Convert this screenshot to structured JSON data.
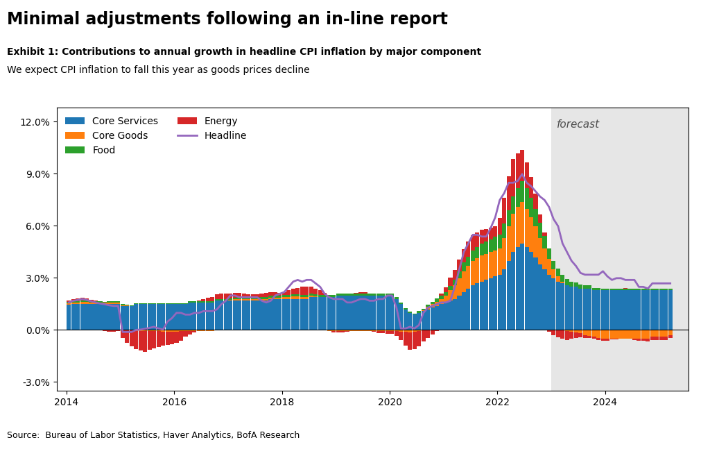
{
  "chart_data": {
    "type": "bar",
    "stacked": true,
    "title": "Minimal adjustments following an in-line report",
    "subtitle": [
      "Exhibit 1: Contributions to annual growth in headline CPI inflation by major component",
      "We expect CPI inflation to fall this year as goods prices decline"
    ],
    "annotations": [
      "forecast",
      "Source:  Bureau of Labor Statistics, Haver Analytics, BofA Research"
    ],
    "forecast_start": 2023.0,
    "legend": "upper left",
    "xlim": [
      2013.82,
      2025.55
    ],
    "xticks": [
      2014,
      2016,
      2018,
      2020,
      2022,
      2024
    ],
    "ylim": [
      -3.5,
      12.8
    ],
    "yticks": [
      {
        "value": -3.0,
        "label": "-3.0%"
      },
      {
        "value": 0.0,
        "label": "0.0%"
      },
      {
        "value": 3.0,
        "label": "3.0%"
      },
      {
        "value": 6.0,
        "label": "6.0%"
      },
      {
        "value": 9.0,
        "label": "9.0%"
      },
      {
        "value": 12.0,
        "label": "12.0%"
      }
    ],
    "x": [
      2014.042,
      2014.125,
      2014.208,
      2014.292,
      2014.375,
      2014.458,
      2014.542,
      2014.625,
      2014.708,
      2014.792,
      2014.875,
      2014.958,
      2015.042,
      2015.125,
      2015.208,
      2015.292,
      2015.375,
      2015.458,
      2015.542,
      2015.625,
      2015.708,
      2015.792,
      2015.875,
      2015.958,
      2016.042,
      2016.125,
      2016.208,
      2016.292,
      2016.375,
      2016.458,
      2016.542,
      2016.625,
      2016.708,
      2016.792,
      2016.875,
      2016.958,
      2017.042,
      2017.125,
      2017.208,
      2017.292,
      2017.375,
      2017.458,
      2017.542,
      2017.625,
      2017.708,
      2017.792,
      2017.875,
      2017.958,
      2018.042,
      2018.125,
      2018.208,
      2018.292,
      2018.375,
      2018.458,
      2018.542,
      2018.625,
      2018.708,
      2018.792,
      2018.875,
      2018.958,
      2019.042,
      2019.125,
      2019.208,
      2019.292,
      2019.375,
      2019.458,
      2019.542,
      2019.625,
      2019.708,
      2019.792,
      2019.875,
      2019.958,
      2020.042,
      2020.125,
      2020.208,
      2020.292,
      2020.375,
      2020.458,
      2020.542,
      2020.625,
      2020.708,
      2020.792,
      2020.875,
      2020.958,
      2021.042,
      2021.125,
      2021.208,
      2021.292,
      2021.375,
      2021.458,
      2021.542,
      2021.625,
      2021.708,
      2021.792,
      2021.875,
      2021.958,
      2022.042,
      2022.125,
      2022.208,
      2022.292,
      2022.375,
      2022.458,
      2022.542,
      2022.625,
      2022.708,
      2022.792,
      2022.875,
      2022.958,
      2023.042,
      2023.125,
      2023.208,
      2023.292,
      2023.375,
      2023.458,
      2023.542,
      2023.625,
      2023.708,
      2023.792,
      2023.875,
      2023.958,
      2024.042,
      2024.125,
      2024.208,
      2024.292,
      2024.375,
      2024.458,
      2024.542,
      2024.625,
      2024.708,
      2024.792,
      2024.875,
      2024.958,
      2025.042,
      2025.125,
      2025.208
    ],
    "series": [
      {
        "name": "Core Services",
        "type": "bar",
        "values": [
          1.45,
          1.48,
          1.48,
          1.48,
          1.48,
          1.48,
          1.48,
          1.48,
          1.48,
          1.48,
          1.48,
          1.48,
          1.38,
          1.38,
          1.38,
          1.48,
          1.48,
          1.48,
          1.48,
          1.48,
          1.48,
          1.48,
          1.48,
          1.48,
          1.48,
          1.48,
          1.48,
          1.58,
          1.58,
          1.58,
          1.58,
          1.58,
          1.58,
          1.68,
          1.68,
          1.68,
          1.68,
          1.68,
          1.68,
          1.68,
          1.68,
          1.68,
          1.68,
          1.68,
          1.68,
          1.78,
          1.78,
          1.78,
          1.78,
          1.78,
          1.78,
          1.78,
          1.78,
          1.78,
          1.88,
          1.88,
          1.88,
          1.88,
          1.88,
          1.88,
          1.98,
          1.98,
          1.98,
          1.98,
          1.98,
          1.98,
          1.98,
          1.98,
          1.98,
          1.98,
          1.98,
          1.98,
          1.98,
          1.78,
          1.48,
          1.18,
          0.98,
          0.88,
          0.98,
          1.08,
          1.18,
          1.28,
          1.38,
          1.48,
          1.58,
          1.68,
          1.78,
          1.98,
          2.18,
          2.38,
          2.58,
          2.68,
          2.78,
          2.88,
          2.98,
          3.08,
          3.18,
          3.48,
          3.98,
          4.48,
          4.78,
          4.98,
          4.78,
          4.48,
          4.18,
          3.78,
          3.48,
          3.18,
          2.98,
          2.78,
          2.68,
          2.58,
          2.48,
          2.48,
          2.38,
          2.38,
          2.38,
          2.28,
          2.28,
          2.28,
          2.28,
          2.28,
          2.28,
          2.28,
          2.28,
          2.28,
          2.28,
          2.28,
          2.28,
          2.28,
          2.28,
          2.28,
          2.28,
          2.28,
          2.28
        ]
      },
      {
        "name": "Core Goods",
        "type": "bar",
        "values": [
          0.1,
          0.1,
          0.1,
          0.12,
          0.12,
          0.1,
          0.1,
          0.1,
          0.08,
          0.08,
          0.08,
          0.08,
          0.05,
          0.02,
          0.0,
          -0.05,
          -0.05,
          -0.05,
          -0.05,
          -0.05,
          -0.08,
          -0.1,
          -0.1,
          -0.1,
          -0.1,
          -0.08,
          -0.05,
          -0.05,
          -0.05,
          -0.05,
          -0.05,
          -0.05,
          -0.05,
          -0.03,
          -0.02,
          0.0,
          0.05,
          0.08,
          0.1,
          0.1,
          0.08,
          0.08,
          0.08,
          0.08,
          0.08,
          0.08,
          0.08,
          0.08,
          0.1,
          0.12,
          0.15,
          0.15,
          0.12,
          0.1,
          0.08,
          0.05,
          0.02,
          -0.02,
          -0.05,
          -0.08,
          -0.05,
          -0.05,
          -0.05,
          -0.05,
          -0.05,
          -0.05,
          -0.05,
          -0.05,
          -0.05,
          -0.05,
          -0.05,
          -0.05,
          -0.05,
          -0.08,
          -0.1,
          -0.12,
          -0.15,
          -0.12,
          -0.05,
          0.05,
          0.15,
          0.2,
          0.25,
          0.3,
          0.4,
          0.6,
          0.8,
          1.0,
          1.2,
          1.3,
          1.4,
          1.45,
          1.5,
          1.5,
          1.5,
          1.5,
          1.5,
          1.8,
          2.0,
          2.2,
          2.3,
          2.4,
          2.2,
          2.0,
          1.8,
          1.5,
          1.2,
          0.9,
          0.5,
          0.3,
          0.1,
          -0.05,
          -0.1,
          -0.15,
          -0.2,
          -0.3,
          -0.35,
          -0.4,
          -0.45,
          -0.5,
          -0.5,
          -0.5,
          -0.5,
          -0.5,
          -0.5,
          -0.5,
          -0.5,
          -0.5,
          -0.5,
          -0.5,
          -0.4,
          -0.4,
          -0.4,
          -0.4,
          -0.3
        ]
      },
      {
        "name": "Food",
        "type": "bar",
        "values": [
          0.05,
          0.06,
          0.07,
          0.08,
          0.08,
          0.08,
          0.07,
          0.07,
          0.07,
          0.08,
          0.08,
          0.08,
          0.07,
          0.06,
          0.05,
          0.05,
          0.05,
          0.05,
          0.05,
          0.05,
          0.05,
          0.04,
          0.04,
          0.04,
          0.05,
          0.05,
          0.06,
          0.07,
          0.08,
          0.08,
          0.08,
          0.08,
          0.08,
          0.08,
          0.1,
          0.1,
          0.1,
          0.1,
          0.1,
          0.1,
          0.1,
          0.12,
          0.12,
          0.12,
          0.13,
          0.13,
          0.12,
          0.12,
          0.12,
          0.12,
          0.12,
          0.12,
          0.12,
          0.12,
          0.12,
          0.12,
          0.12,
          0.12,
          0.12,
          0.12,
          0.1,
          0.1,
          0.1,
          0.1,
          0.1,
          0.1,
          0.1,
          0.1,
          0.1,
          0.1,
          0.1,
          0.1,
          0.1,
          0.1,
          0.08,
          0.07,
          0.07,
          0.07,
          0.1,
          0.1,
          0.12,
          0.15,
          0.18,
          0.2,
          0.2,
          0.25,
          0.3,
          0.4,
          0.5,
          0.55,
          0.6,
          0.65,
          0.7,
          0.72,
          0.75,
          0.78,
          0.8,
          0.85,
          0.9,
          1.0,
          1.1,
          1.2,
          1.2,
          1.15,
          1.0,
          0.9,
          0.75,
          0.6,
          0.5,
          0.45,
          0.4,
          0.35,
          0.3,
          0.25,
          0.22,
          0.2,
          0.18,
          0.15,
          0.12,
          0.1,
          0.1,
          0.1,
          0.1,
          0.1,
          0.1,
          0.1,
          0.1,
          0.1,
          0.1,
          0.1,
          0.1,
          0.1,
          0.1,
          0.1,
          0.1
        ]
      },
      {
        "name": "Energy",
        "type": "bar",
        "values": [
          0.1,
          0.12,
          0.15,
          0.18,
          0.12,
          0.08,
          0.03,
          -0.02,
          -0.08,
          -0.12,
          -0.1,
          -0.08,
          -0.45,
          -0.75,
          -0.95,
          -1.05,
          -1.15,
          -1.2,
          -1.1,
          -1.0,
          -0.9,
          -0.82,
          -0.78,
          -0.72,
          -0.65,
          -0.55,
          -0.35,
          -0.2,
          -0.08,
          0.02,
          0.12,
          0.18,
          0.22,
          0.28,
          0.32,
          0.3,
          0.28,
          0.28,
          0.25,
          0.22,
          0.18,
          0.16,
          0.18,
          0.22,
          0.24,
          0.2,
          0.18,
          0.14,
          0.18,
          0.28,
          0.32,
          0.38,
          0.48,
          0.48,
          0.42,
          0.32,
          0.28,
          0.12,
          0.02,
          -0.08,
          -0.08,
          -0.08,
          -0.04,
          0.02,
          0.06,
          0.1,
          0.08,
          0.02,
          -0.06,
          -0.12,
          -0.12,
          -0.16,
          -0.18,
          -0.28,
          -0.48,
          -0.78,
          -1.0,
          -1.0,
          -0.88,
          -0.68,
          -0.48,
          -0.28,
          -0.08,
          0.12,
          0.28,
          0.48,
          0.58,
          0.68,
          0.78,
          0.88,
          0.88,
          0.82,
          0.78,
          0.72,
          0.68,
          0.62,
          0.98,
          1.48,
          1.98,
          2.18,
          2.0,
          1.78,
          1.48,
          1.18,
          0.88,
          0.48,
          0.18,
          -0.12,
          -0.32,
          -0.42,
          -0.52,
          -0.52,
          -0.42,
          -0.32,
          -0.22,
          -0.16,
          -0.12,
          -0.12,
          -0.12,
          -0.12,
          -0.12,
          -0.06,
          -0.06,
          0.0,
          0.04,
          0.0,
          -0.08,
          -0.12,
          -0.14,
          -0.18,
          -0.18,
          -0.18,
          -0.18,
          -0.18,
          -0.18
        ]
      },
      {
        "name": "Headline",
        "type": "line",
        "values": [
          1.58,
          1.68,
          1.72,
          1.78,
          1.72,
          1.65,
          1.58,
          1.52,
          1.48,
          1.42,
          1.38,
          1.38,
          -0.12,
          -0.12,
          -0.12,
          0.0,
          0.02,
          0.06,
          0.12,
          0.18,
          0.08,
          0.02,
          0.48,
          0.68,
          0.98,
          0.98,
          0.88,
          0.88,
          0.98,
          0.98,
          1.08,
          1.08,
          1.08,
          1.18,
          1.48,
          1.68,
          1.98,
          1.98,
          1.88,
          1.88,
          1.88,
          1.88,
          1.88,
          1.68,
          1.58,
          1.68,
          1.98,
          2.08,
          2.18,
          2.48,
          2.78,
          2.88,
          2.78,
          2.88,
          2.88,
          2.68,
          2.48,
          2.08,
          1.88,
          1.78,
          1.78,
          1.78,
          1.58,
          1.58,
          1.68,
          1.78,
          1.78,
          1.68,
          1.68,
          1.78,
          1.78,
          1.98,
          1.98,
          1.28,
          0.08,
          0.08,
          0.18,
          0.08,
          0.28,
          0.98,
          1.28,
          1.38,
          1.48,
          1.58,
          1.58,
          1.68,
          2.48,
          3.48,
          4.48,
          4.98,
          5.48,
          5.48,
          5.38,
          5.38,
          5.88,
          6.48,
          7.48,
          7.88,
          8.48,
          8.48,
          8.58,
          8.98,
          8.48,
          8.28,
          7.98,
          7.68,
          7.48,
          7.08,
          6.38,
          5.98,
          4.98,
          4.48,
          3.98,
          3.68,
          3.28,
          3.18,
          3.18,
          3.18,
          3.18,
          3.38,
          3.08,
          2.88,
          2.98,
          2.98,
          2.88,
          2.88,
          2.88,
          2.48,
          2.48,
          2.38,
          2.68,
          2.68,
          2.68,
          2.68,
          2.68
        ]
      }
    ]
  }
}
